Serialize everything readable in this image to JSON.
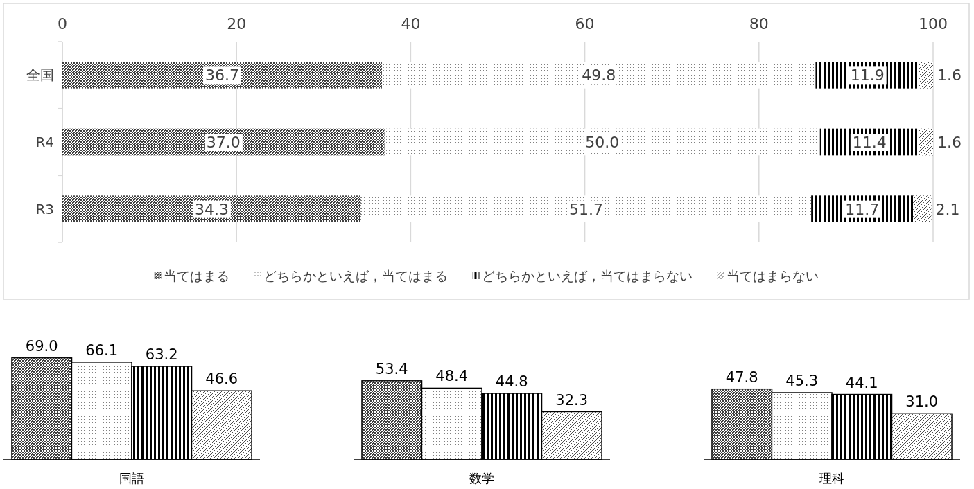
{
  "chart_data": [
    {
      "type": "bar",
      "orientation": "horizontal",
      "stacked": true,
      "categories": [
        "全国",
        "R4",
        "R3"
      ],
      "series": [
        {
          "name": "当てはまる",
          "color": "#404040",
          "values": [
            36.7,
            37.0,
            34.3
          ],
          "value_labels": [
            "36.7",
            "37.0",
            "34.3"
          ]
        },
        {
          "name": "どちらかといえば，当てはまる",
          "color": "#808080",
          "values": [
            49.8,
            50.0,
            51.7
          ],
          "value_labels": [
            "49.8",
            "50.0",
            "51.7"
          ]
        },
        {
          "name": "どちらかといえば，当てはまらない",
          "color": "#000000",
          "values": [
            11.9,
            11.4,
            11.7
          ],
          "value_labels": [
            "11.9",
            "11.4",
            "11.7"
          ]
        },
        {
          "name": "当てはまらない",
          "color": "#505050",
          "values": [
            1.6,
            1.6,
            2.1
          ],
          "value_labels": [
            "1.6",
            "1.6",
            "2.1"
          ]
        }
      ],
      "xlim": [
        0,
        100
      ],
      "xticks": [
        0,
        20,
        40,
        60,
        80,
        100
      ],
      "grid": "x",
      "legend": "bottom"
    },
    {
      "type": "bar",
      "categories": [
        null,
        null,
        null,
        null
      ],
      "values": [
        69.0,
        66.1,
        63.2,
        46.6
      ],
      "value_labels": [
        "69.0",
        "66.1",
        "63.2",
        "46.6"
      ],
      "colors": [
        "#404040",
        "#808080",
        "#000000",
        "#505050"
      ],
      "xlabel": "国語"
    },
    {
      "type": "bar",
      "categories": [
        null,
        null,
        null,
        null
      ],
      "values": [
        53.4,
        48.4,
        44.8,
        32.3
      ],
      "value_labels": [
        "53.4",
        "48.4",
        "44.8",
        "32.3"
      ],
      "colors": [
        "#404040",
        "#808080",
        "#000000",
        "#505050"
      ],
      "xlabel": "数学"
    },
    {
      "type": "bar",
      "categories": [
        null,
        null,
        null,
        null
      ],
      "values": [
        47.8,
        45.3,
        44.1,
        31.0
      ],
      "value_labels": [
        "47.8",
        "45.3",
        "44.1",
        "31.0"
      ],
      "colors": [
        "#404040",
        "#808080",
        "#000000",
        "#505050"
      ],
      "xlabel": "理科"
    }
  ]
}
